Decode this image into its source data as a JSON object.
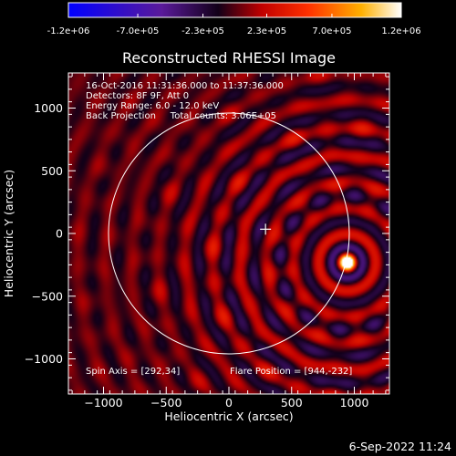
{
  "colorbar": {
    "tick_labels": [
      "-1.2e+06",
      "-7.0e+05",
      "-2.3e+05",
      "2.3e+05",
      "7.0e+05",
      "1.2e+06"
    ],
    "tick_values": [
      -1200000,
      -700000,
      -230000,
      230000,
      700000,
      1200000
    ],
    "range": [
      -1200000,
      1200000
    ],
    "colors": [
      "#0000ff",
      "#5a1a9a",
      "#000000",
      "#d00000",
      "#ffa000",
      "#ffffff"
    ]
  },
  "chart_data": {
    "type": "heatmap",
    "title": "Reconstructed RHESSI Image",
    "xlabel": "Heliocentric X (arcsec)",
    "ylabel": "Heliocentric Y (arcsec)",
    "xlim": [
      -1280,
      1280
    ],
    "ylim": [
      -1280,
      1280
    ],
    "x_ticks": [
      -1000,
      -500,
      0,
      500,
      1000
    ],
    "x_tick_labels": [
      "−1000",
      "−500",
      "0",
      "500",
      "1000"
    ],
    "y_ticks": [
      -1000,
      -500,
      0,
      500,
      1000
    ],
    "y_tick_labels": [
      "−1000",
      "−500",
      "0",
      "500",
      "1000"
    ],
    "info_lines": [
      "16-Oct-2016 11:31:36.000 to 11:37:36.000",
      "Detectors: 8F 9F, Att 0",
      "Energy Range: 6.0 - 12.0 keV",
      "Back Projection     Total counts: 3.06E+05"
    ],
    "spin_axis_label": "Spin Axis = [292,34]",
    "flare_position_label": "Flare Position = [944,-232]",
    "spin_axis": [
      292,
      34
    ],
    "flare_position": [
      944,
      -232
    ],
    "solar_limb_radius": 960,
    "total_counts": 306000,
    "colormap_range": [
      -1200000,
      1200000
    ]
  },
  "footer": {
    "timestamp": "6-Sep-2022 11:24"
  }
}
